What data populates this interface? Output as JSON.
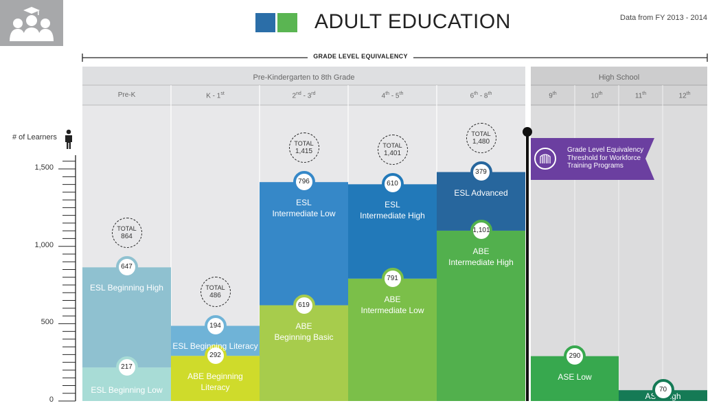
{
  "title": "ADULT EDUCATION",
  "source_note": "Data from FY 2013 - 2014",
  "section_title": "GRADE LEVEL EQUIVALENCY",
  "bands": [
    "Pre-Kindergarten to 8th Grade",
    "High School"
  ],
  "grades": [
    {
      "main": "Pre-K",
      "sup": ""
    },
    {
      "main": "K - 1",
      "sup": "st"
    },
    {
      "main": "2",
      "sup": "nd",
      "main2": " - 3",
      "sup2": "rd"
    },
    {
      "main": "4",
      "sup": "th",
      "main2": " - 5",
      "sup2": "th"
    },
    {
      "main": "6",
      "sup": "th",
      "main2": " - 8",
      "sup2": "th"
    },
    {
      "main": "9",
      "sup": "th"
    },
    {
      "main": "10",
      "sup": "th"
    },
    {
      "main": "11",
      "sup": "th"
    },
    {
      "main": "12",
      "sup": "th"
    }
  ],
  "y_axis_label": "# of Learners",
  "threshold_label": [
    "Grade Level Equivalency",
    "Threshold for Workforce",
    "Training Programs"
  ],
  "colors": {
    "square_blue": "#2b6ea8",
    "square_green": "#5ab552",
    "flag_purple": "#6b3fa0",
    "threshold_line": "#111111"
  },
  "chart_data": {
    "type": "bar",
    "stacked": true,
    "ylim": [
      0,
      1600
    ],
    "ytick_labels": [
      "1,500",
      "1,000",
      "500",
      "0"
    ],
    "yticks": [
      1500,
      1000,
      500,
      0
    ],
    "grid": false,
    "categories": [
      "Pre-K",
      "K - 1st",
      "2nd - 3rd",
      "4th - 5th",
      "6th - 8th",
      "9th - 10th",
      "11th - 12th"
    ],
    "totals": [
      {
        "label": "TOTAL",
        "value": "864"
      },
      {
        "label": "TOTAL",
        "value": "486"
      },
      {
        "label": "TOTAL",
        "value": "1,415"
      },
      {
        "label": "TOTAL",
        "value": "1,401"
      },
      {
        "label": "TOTAL",
        "value": "1,480"
      },
      null,
      null
    ],
    "segments": [
      {
        "category": "Pre-K",
        "name": "ESL Beginning Low",
        "value": 217,
        "display": "217",
        "color": "#a8dcd6"
      },
      {
        "category": "Pre-K",
        "name": "ESL Beginning High",
        "value": 647,
        "display": "647",
        "color": "#8fc1d0"
      },
      {
        "category": "K - 1st",
        "name": "ABE Beginning Literacy",
        "value": 292,
        "display": "292",
        "color": "#cfdb2b"
      },
      {
        "category": "K - 1st",
        "name": "ESL Beginning Literacy",
        "value": 194,
        "display": "194",
        "color": "#6fb3d7"
      },
      {
        "category": "2nd - 3rd",
        "name": "ABE Beginning Basic",
        "value": 619,
        "display": "619",
        "color": "#a7cc4c"
      },
      {
        "category": "2nd - 3rd",
        "name": "ESL Intermediate Low",
        "value": 796,
        "display": "796",
        "color": "#3688c8"
      },
      {
        "category": "4th - 5th",
        "name": "ABE Intermediate Low",
        "value": 791,
        "display": "791",
        "color": "#7bbf49"
      },
      {
        "category": "4th - 5th",
        "name": "ESL Intermediate High",
        "value": 610,
        "display": "610",
        "color": "#2279b9"
      },
      {
        "category": "6th - 8th",
        "name": "ABE Intermediate High",
        "value": 1101,
        "display": "1,101",
        "color": "#52b04d"
      },
      {
        "category": "6th - 8th",
        "name": "ESL Advanced",
        "value": 379,
        "display": "379",
        "color": "#27669d"
      },
      {
        "category": "9th - 10th",
        "name": "ASE Low",
        "value": 290,
        "display": "290",
        "color": "#37a84e"
      },
      {
        "category": "11th - 12th",
        "name": "ASE High",
        "value": 70,
        "display": "70",
        "color": "#157a55"
      }
    ],
    "segment_labels": {
      "ESL Beginning Low": [
        "ESL Beginning Low"
      ],
      "ESL Beginning High": [
        "ESL Beginning High"
      ],
      "ABE Beginning Literacy": [
        "ABE Beginning",
        "Literacy"
      ],
      "ESL Beginning Literacy": [
        "ESL Beginning Literacy"
      ],
      "ABE Beginning Basic": [
        "ABE",
        "Beginning Basic"
      ],
      "ESL Intermediate Low": [
        "ESL",
        "Intermediate Low"
      ],
      "ABE Intermediate Low": [
        "ABE",
        "Intermediate Low"
      ],
      "ESL Intermediate High": [
        "ESL",
        "Intermediate High"
      ],
      "ABE Intermediate High": [
        "ABE",
        "Intermediate High"
      ],
      "ESL Advanced": [
        "ESL Advanced"
      ],
      "ASE Low": [
        "ASE Low"
      ],
      "ASE High": [
        "ASE High"
      ]
    }
  }
}
